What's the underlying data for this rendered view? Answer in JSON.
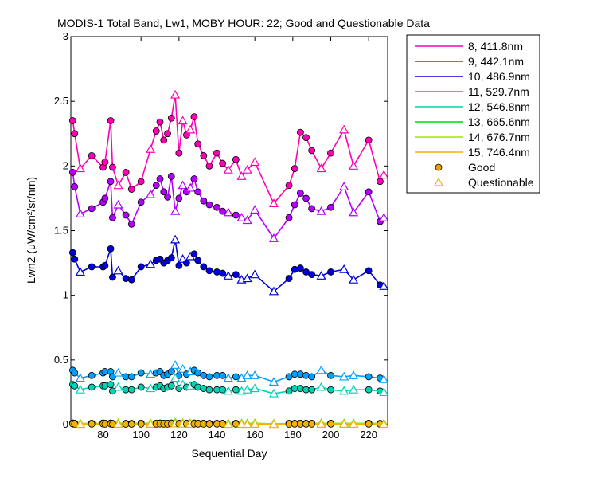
{
  "chart_data": {
    "type": "line",
    "title": "MODIS-1 Total Band, Lw1, MOBY HOUR: 22;  Good and Questionable Data",
    "xlabel": "Sequential Day",
    "ylabel": "Lwn2 (μW/cm²/sr/nm)",
    "xlim": [
      63,
      230
    ],
    "ylim": [
      0,
      3
    ],
    "xticks": [
      80,
      100,
      120,
      140,
      160,
      180,
      200,
      220
    ],
    "yticks": [
      0,
      0.5,
      1,
      1.5,
      2,
      2.5,
      3
    ],
    "ytick_labels": [
      "0",
      "0.5",
      "1",
      "1.5",
      "2",
      "2.5",
      "3"
    ],
    "grid": false,
    "legend_position": "outside-top-right",
    "x": [
      64,
      65,
      68,
      74,
      80,
      81,
      84,
      85,
      88,
      92,
      95,
      100,
      105,
      108,
      110,
      112,
      114,
      116,
      118,
      120,
      122,
      124,
      126,
      128,
      130,
      133,
      136,
      140,
      143,
      146,
      150,
      153,
      156,
      160,
      170,
      178,
      181,
      184,
      187,
      190,
      195,
      200,
      207,
      212,
      220,
      226,
      228
    ],
    "series": [
      {
        "name": "8, 411.8nm",
        "color": "#ff00b4",
        "values": [
          2.35,
          2.25,
          1.98,
          2.08,
          1.99,
          2.03,
          2.35,
          1.99,
          1.85,
          1.95,
          1.82,
          1.88,
          2.13,
          2.27,
          2.34,
          2.2,
          2.25,
          2.37,
          2.55,
          2.1,
          2.35,
          2.24,
          2.28,
          2.38,
          2.17,
          2.08,
          2.0,
          2.1,
          2.02,
          1.97,
          2.05,
          1.92,
          1.97,
          2.03,
          1.71,
          1.85,
          1.98,
          2.26,
          2.22,
          2.12,
          1.98,
          2.1,
          2.28,
          2.0,
          2.2,
          1.88,
          1.93
        ]
      },
      {
        "name": "9, 442.1nm",
        "color": "#b400ff",
        "values": [
          1.95,
          1.84,
          1.63,
          1.67,
          1.72,
          1.75,
          1.88,
          1.6,
          1.7,
          1.62,
          1.55,
          1.72,
          1.78,
          1.85,
          1.9,
          1.8,
          1.76,
          1.92,
          1.65,
          1.75,
          1.85,
          1.8,
          1.83,
          1.9,
          1.8,
          1.73,
          1.7,
          1.68,
          1.65,
          1.64,
          1.62,
          1.6,
          1.58,
          1.66,
          1.44,
          1.6,
          1.7,
          1.79,
          1.75,
          1.67,
          1.65,
          1.68,
          1.84,
          1.64,
          1.8,
          1.57,
          1.6
        ]
      },
      {
        "name": "10, 486.9nm",
        "color": "#0000dc",
        "values": [
          1.33,
          1.28,
          1.18,
          1.22,
          1.22,
          1.23,
          1.36,
          1.14,
          1.19,
          1.13,
          1.12,
          1.22,
          1.24,
          1.27,
          1.28,
          1.25,
          1.27,
          1.29,
          1.43,
          1.23,
          1.28,
          1.25,
          1.3,
          1.32,
          1.27,
          1.22,
          1.19,
          1.18,
          1.17,
          1.15,
          1.16,
          1.12,
          1.13,
          1.16,
          1.03,
          1.13,
          1.2,
          1.21,
          1.18,
          1.16,
          1.15,
          1.18,
          1.2,
          1.12,
          1.19,
          1.08,
          1.07
        ]
      },
      {
        "name": "11, 529.7nm",
        "color": "#00a0ff",
        "values": [
          0.42,
          0.4,
          0.36,
          0.38,
          0.4,
          0.41,
          0.41,
          0.37,
          0.4,
          0.37,
          0.37,
          0.4,
          0.39,
          0.4,
          0.41,
          0.38,
          0.39,
          0.41,
          0.46,
          0.38,
          0.43,
          0.39,
          0.41,
          0.42,
          0.4,
          0.38,
          0.37,
          0.38,
          0.38,
          0.36,
          0.37,
          0.36,
          0.38,
          0.38,
          0.33,
          0.37,
          0.39,
          0.39,
          0.38,
          0.37,
          0.42,
          0.38,
          0.37,
          0.38,
          0.37,
          0.36,
          0.35
        ]
      },
      {
        "name": "12, 546.8nm",
        "color": "#00d2b4",
        "values": [
          0.31,
          0.3,
          0.27,
          0.29,
          0.3,
          0.3,
          0.31,
          0.26,
          0.29,
          0.27,
          0.27,
          0.29,
          0.28,
          0.29,
          0.3,
          0.28,
          0.29,
          0.3,
          0.36,
          0.28,
          0.31,
          0.29,
          0.3,
          0.31,
          0.29,
          0.28,
          0.27,
          0.27,
          0.27,
          0.26,
          0.27,
          0.26,
          0.27,
          0.28,
          0.24,
          0.26,
          0.28,
          0.28,
          0.27,
          0.27,
          0.29,
          0.27,
          0.26,
          0.27,
          0.27,
          0.26,
          0.25
        ]
      },
      {
        "name": "13, 665.6nm",
        "color": "#00dc00",
        "values": [
          0.012,
          0.01,
          0.008,
          0.01,
          0.012,
          0.011,
          0.012,
          0.009,
          0.011,
          0.009,
          0.009,
          0.011,
          0.01,
          0.011,
          0.012,
          0.01,
          0.011,
          0.012,
          0.016,
          0.01,
          0.012,
          0.011,
          0.011,
          0.012,
          0.011,
          0.01,
          0.009,
          0.01,
          0.01,
          0.009,
          0.01,
          0.009,
          0.009,
          0.01,
          0.007,
          0.009,
          0.01,
          0.011,
          0.01,
          0.01,
          0.011,
          0.01,
          0.01,
          0.01,
          0.01,
          0.009,
          0.008
        ]
      },
      {
        "name": "14, 676.7nm",
        "color": "#a0e600",
        "values": [
          0.011,
          0.009,
          0.007,
          0.009,
          0.011,
          0.01,
          0.011,
          0.008,
          0.01,
          0.008,
          0.008,
          0.01,
          0.009,
          0.01,
          0.011,
          0.009,
          0.01,
          0.011,
          0.015,
          0.009,
          0.011,
          0.01,
          0.01,
          0.011,
          0.01,
          0.009,
          0.008,
          0.009,
          0.009,
          0.008,
          0.009,
          0.008,
          0.008,
          0.009,
          0.006,
          0.008,
          0.009,
          0.01,
          0.009,
          0.009,
          0.01,
          0.009,
          0.009,
          0.009,
          0.009,
          0.008,
          0.007
        ]
      },
      {
        "name": "15, 746.4nm",
        "color": "#f0b400",
        "values": [
          0.005,
          0.004,
          0.003,
          0.004,
          0.005,
          0.004,
          0.005,
          0.003,
          0.004,
          0.003,
          0.003,
          0.004,
          0.004,
          0.004,
          0.005,
          0.004,
          0.004,
          0.005,
          0.007,
          0.004,
          0.005,
          0.004,
          0.004,
          0.005,
          0.004,
          0.004,
          0.003,
          0.004,
          0.004,
          0.003,
          0.004,
          0.003,
          0.003,
          0.004,
          0.002,
          0.003,
          0.004,
          0.004,
          0.004,
          0.004,
          0.004,
          0.004,
          0.004,
          0.004,
          0.004,
          0.003,
          0.003
        ]
      }
    ],
    "quality": [
      "G",
      "G",
      "Q",
      "G",
      "G",
      "G",
      "G",
      "G",
      "Q",
      "G",
      "G",
      "G",
      "Q",
      "G",
      "G",
      "G",
      "G",
      "G",
      "Q",
      "G",
      "Q",
      "G",
      "Q",
      "G",
      "G",
      "G",
      "G",
      "G",
      "G",
      "Q",
      "G",
      "Q",
      "Q",
      "Q",
      "Q",
      "G",
      "G",
      "G",
      "G",
      "G",
      "Q",
      "G",
      "Q",
      "Q",
      "G",
      "G",
      "Q"
    ],
    "legend_markers": [
      {
        "label": "Good",
        "marker": "circle",
        "color": "#f0a000"
      },
      {
        "label": "Questionable",
        "marker": "triangle",
        "color": "#f0b400"
      }
    ]
  }
}
